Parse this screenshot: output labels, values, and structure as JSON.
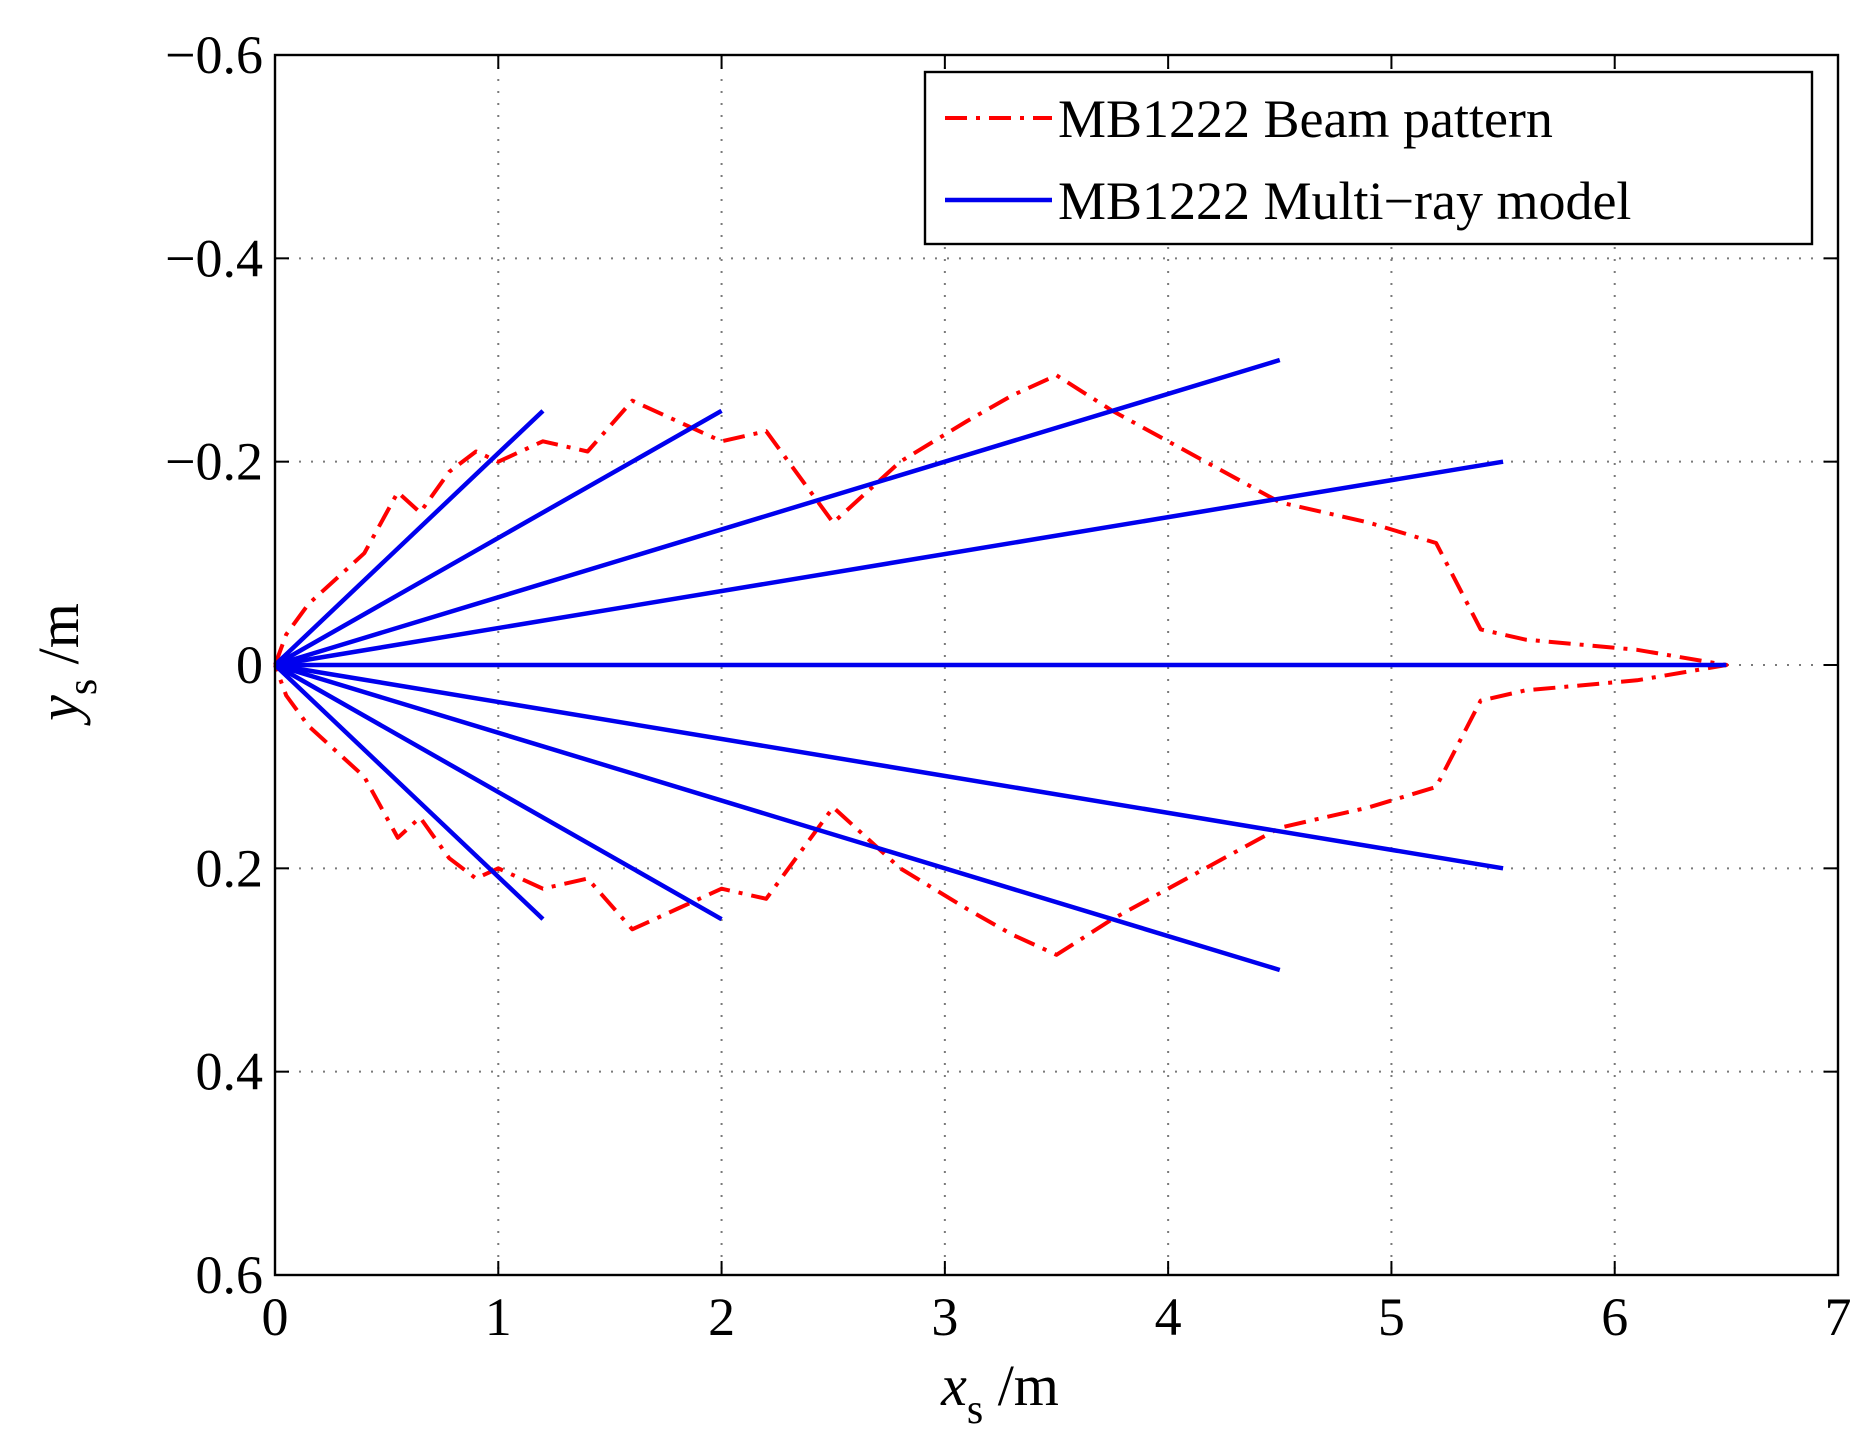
{
  "chart_data": {
    "type": "line",
    "title": "",
    "xlabel": {
      "main": "x",
      "sub": "s",
      "unit": " /m"
    },
    "ylabel": {
      "main": "y",
      "sub": "s",
      "unit": " /m"
    },
    "xlim": [
      0,
      7
    ],
    "ylim": [
      -0.6,
      0.6
    ],
    "y_axis_reversed": true,
    "grid": true,
    "xticks": [
      0,
      1,
      2,
      3,
      4,
      5,
      6,
      7
    ],
    "yticks": [
      -0.6,
      -0.4,
      -0.2,
      0,
      0.2,
      0.4,
      0.6
    ],
    "xtick_labels": [
      "0",
      "1",
      "2",
      "3",
      "4",
      "5",
      "6",
      "7"
    ],
    "ytick_labels": [
      "−0.6",
      "−0.4",
      "−0.2",
      "0",
      "0.2",
      "0.4",
      "0.6"
    ],
    "legend_position": "top-right",
    "series": [
      {
        "name": "MB1222 Beam pattern",
        "color": "#ff0000",
        "style": "dash-dot",
        "x": [
          0,
          0.05,
          0.15,
          0.3,
          0.4,
          0.55,
          0.65,
          0.78,
          0.9,
          1.0,
          1.2,
          1.4,
          1.6,
          1.8,
          2.0,
          2.2,
          2.5,
          2.8,
          3.1,
          3.3,
          3.5,
          3.75,
          4.0,
          4.5,
          4.9,
          5.2,
          5.4,
          5.6,
          6.1,
          6.5,
          6.1,
          5.6,
          5.4,
          5.2,
          4.9,
          4.5,
          4.0,
          3.75,
          3.5,
          3.3,
          3.1,
          2.8,
          2.5,
          2.2,
          2.0,
          1.8,
          1.6,
          1.4,
          1.2,
          1.0,
          0.9,
          0.78,
          0.65,
          0.55,
          0.4,
          0.3,
          0.15,
          0.05,
          0
        ],
        "y": [
          0,
          -0.03,
          -0.06,
          -0.09,
          -0.11,
          -0.17,
          -0.15,
          -0.19,
          -0.21,
          -0.2,
          -0.22,
          -0.21,
          -0.26,
          -0.24,
          -0.22,
          -0.23,
          -0.14,
          -0.2,
          -0.24,
          -0.265,
          -0.285,
          -0.25,
          -0.22,
          -0.16,
          -0.14,
          -0.12,
          -0.035,
          -0.025,
          -0.015,
          0,
          0.015,
          0.025,
          0.035,
          0.12,
          0.14,
          0.16,
          0.22,
          0.25,
          0.285,
          0.265,
          0.24,
          0.2,
          0.14,
          0.23,
          0.22,
          0.24,
          0.26,
          0.21,
          0.22,
          0.2,
          0.21,
          0.19,
          0.15,
          0.17,
          0.11,
          0.09,
          0.06,
          0.03,
          0
        ]
      },
      {
        "name": "MB1222 Multi−ray model",
        "color": "#0000ee",
        "style": "solid",
        "rays": [
          {
            "x": [
              0,
              1.2
            ],
            "y": [
              0,
              -0.25
            ]
          },
          {
            "x": [
              0,
              2.0
            ],
            "y": [
              0,
              -0.25
            ]
          },
          {
            "x": [
              0,
              4.5
            ],
            "y": [
              0,
              -0.3
            ]
          },
          {
            "x": [
              0,
              5.5
            ],
            "y": [
              0,
              -0.2
            ]
          },
          {
            "x": [
              0,
              6.5
            ],
            "y": [
              0,
              0
            ]
          },
          {
            "x": [
              0,
              5.5
            ],
            "y": [
              0,
              0.2
            ]
          },
          {
            "x": [
              0,
              4.5
            ],
            "y": [
              0,
              0.3
            ]
          },
          {
            "x": [
              0,
              2.0
            ],
            "y": [
              0,
              0.25
            ]
          },
          {
            "x": [
              0,
              1.2
            ],
            "y": [
              0,
              0.25
            ]
          }
        ]
      }
    ]
  }
}
